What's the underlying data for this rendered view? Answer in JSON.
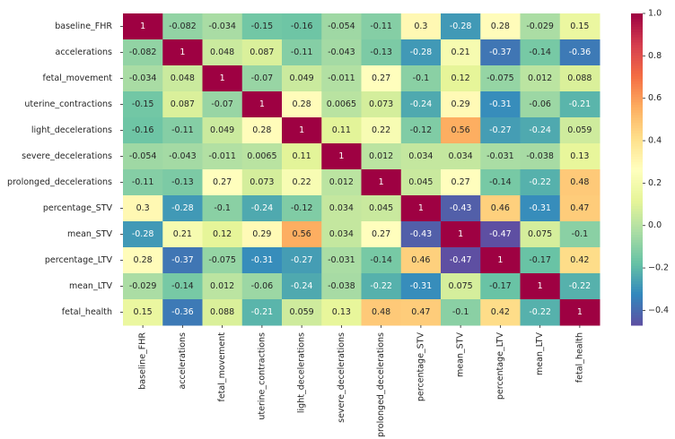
{
  "chart_data": {
    "type": "heatmap",
    "x_categories": [
      "baseline_FHR",
      "accelerations",
      "fetal_movement",
      "uterine_contractions",
      "light_decelerations",
      "severe_decelerations",
      "prolonged_decelerations",
      "percentage_STV",
      "mean_STV",
      "percentage_LTV",
      "mean_LTV",
      "fetal_health"
    ],
    "y_categories": [
      "baseline_FHR",
      "accelerations",
      "fetal_movement",
      "uterine_contractions",
      "light_decelerations",
      "severe_decelerations",
      "prolonged_decelerations",
      "percentage_STV",
      "mean_STV",
      "percentage_LTV",
      "mean_LTV",
      "fetal_health"
    ],
    "values": [
      [
        1,
        -0.082,
        -0.034,
        -0.15,
        -0.16,
        -0.054,
        -0.11,
        0.3,
        -0.28,
        0.28,
        -0.029,
        0.15
      ],
      [
        -0.082,
        1,
        0.048,
        0.087,
        -0.11,
        -0.043,
        -0.13,
        -0.28,
        0.21,
        -0.37,
        -0.14,
        -0.36
      ],
      [
        -0.034,
        0.048,
        1,
        -0.07,
        0.049,
        -0.011,
        0.27,
        -0.1,
        0.12,
        -0.075,
        0.012,
        0.088
      ],
      [
        -0.15,
        0.087,
        -0.07,
        1,
        0.28,
        0.0065,
        0.073,
        -0.24,
        0.29,
        -0.31,
        -0.06,
        -0.21
      ],
      [
        -0.16,
        -0.11,
        0.049,
        0.28,
        1,
        0.11,
        0.22,
        -0.12,
        0.56,
        -0.27,
        -0.24,
        0.059
      ],
      [
        -0.054,
        -0.043,
        -0.011,
        0.0065,
        0.11,
        1,
        0.012,
        0.034,
        0.034,
        -0.031,
        -0.038,
        0.13
      ],
      [
        -0.11,
        -0.13,
        0.27,
        0.073,
        0.22,
        0.012,
        1,
        0.045,
        0.27,
        -0.14,
        -0.22,
        0.48
      ],
      [
        0.3,
        -0.28,
        -0.1,
        -0.24,
        -0.12,
        0.034,
        0.045,
        1,
        -0.43,
        0.46,
        -0.31,
        0.47
      ],
      [
        -0.28,
        0.21,
        0.12,
        0.29,
        0.56,
        0.034,
        0.27,
        -0.43,
        1,
        -0.47,
        0.075,
        -0.1
      ],
      [
        0.28,
        -0.37,
        -0.075,
        -0.31,
        -0.27,
        -0.031,
        -0.14,
        0.46,
        -0.47,
        1,
        -0.17,
        0.42
      ],
      [
        -0.029,
        -0.14,
        0.012,
        -0.06,
        -0.24,
        -0.038,
        -0.22,
        -0.31,
        0.075,
        -0.17,
        1,
        -0.22
      ],
      [
        0.15,
        -0.36,
        0.088,
        -0.21,
        0.059,
        0.13,
        0.48,
        0.47,
        -0.1,
        0.42,
        -0.22,
        1
      ]
    ],
    "colormap": "Spectral_r",
    "clim": [
      -0.47,
      1
    ],
    "cticks": [
      {
        "value": -0.4,
        "label": "−0.4"
      },
      {
        "value": -0.2,
        "label": "−0.2"
      },
      {
        "value": 0,
        "label": "0.0"
      },
      {
        "value": 0.2,
        "label": "0.2"
      },
      {
        "value": 0.4,
        "label": "0.4"
      },
      {
        "value": 0.6,
        "label": "0.6"
      },
      {
        "value": 0.8,
        "label": "0.8"
      },
      {
        "value": 1,
        "label": "1.0"
      }
    ]
  }
}
